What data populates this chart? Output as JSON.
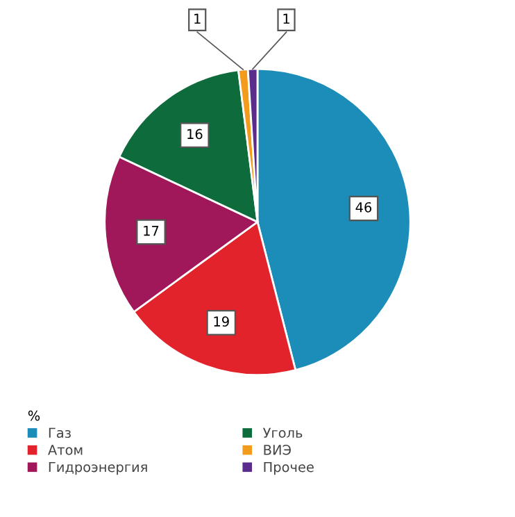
{
  "chart_data": {
    "type": "pie",
    "categories": [
      "Газ",
      "Атом",
      "Гидроэнергия",
      "Уголь",
      "ВИЭ",
      "Прочее"
    ],
    "values": [
      46,
      19,
      17,
      16,
      1,
      1
    ],
    "colors": [
      "#1b8db8",
      "#e3232b",
      "#a0185a",
      "#0e6b3c",
      "#f39b1c",
      "#5a2d8c"
    ],
    "legend_title": "%",
    "legend": "bottom left",
    "data_labels": true
  }
}
